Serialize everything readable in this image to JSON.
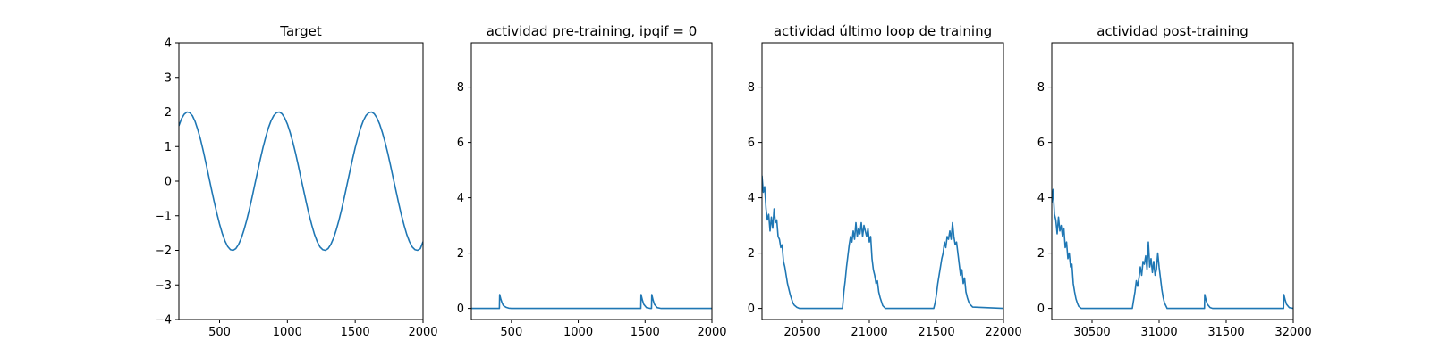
{
  "figure": {
    "line_color": "#1f77b4"
  },
  "chart_data": [
    {
      "type": "line",
      "title": "Target",
      "xlim": [
        200,
        2000
      ],
      "ylim": [
        -4,
        4
      ],
      "xticks": [
        500,
        1000,
        1500,
        2000
      ],
      "xtick_labels": [
        "500",
        "1000",
        "1500",
        "2000"
      ],
      "yticks": [
        -4,
        -3,
        -2,
        -1,
        0,
        1,
        2,
        3,
        4
      ],
      "ytick_labels": [
        "−4",
        "−3",
        "−2",
        "−1",
        "0",
        "1",
        "2",
        "3",
        "4"
      ],
      "series": [
        {
          "name": "target",
          "x": [
            200,
            220,
            240,
            260,
            280,
            300,
            320,
            340,
            360,
            380,
            400,
            420,
            440,
            460,
            480,
            500,
            520,
            540,
            560,
            580,
            600,
            620,
            640,
            660,
            680,
            700,
            720,
            740,
            760,
            780,
            800,
            820,
            840,
            860,
            880,
            900,
            920,
            940,
            960,
            980,
            1000,
            1020,
            1040,
            1060,
            1080,
            1100,
            1120,
            1140,
            1160,
            1180,
            1200,
            1220,
            1240,
            1260,
            1280,
            1300,
            1320,
            1340,
            1360,
            1380,
            1400,
            1420,
            1440,
            1460,
            1480,
            1500,
            1520,
            1540,
            1560,
            1580,
            1600,
            1620,
            1640,
            1660,
            1680,
            1700,
            1720,
            1740,
            1760,
            1780,
            1800,
            1820,
            1840,
            1860,
            1880,
            1900,
            1920,
            1940,
            1960,
            1980,
            2000
          ],
          "y": [
            1.6,
            1.81,
            1.94,
            2.0,
            1.98,
            1.89,
            1.72,
            1.48,
            1.2,
            0.87,
            0.51,
            0.14,
            -0.23,
            -0.59,
            -0.93,
            -1.24,
            -1.51,
            -1.73,
            -1.89,
            -1.98,
            -2.0,
            -1.95,
            -1.83,
            -1.65,
            -1.41,
            -1.13,
            -0.81,
            -0.46,
            -0.09,
            0.27,
            0.63,
            0.97,
            1.27,
            1.54,
            1.75,
            1.9,
            1.98,
            2.0,
            1.95,
            1.83,
            1.65,
            1.41,
            1.13,
            0.81,
            0.46,
            0.09,
            -0.27,
            -0.63,
            -0.97,
            -1.27,
            -1.54,
            -1.75,
            -1.9,
            -1.98,
            -2.0,
            -1.95,
            -1.83,
            -1.65,
            -1.41,
            -1.13,
            -0.81,
            -0.46,
            -0.09,
            0.27,
            0.63,
            0.97,
            1.27,
            1.54,
            1.75,
            1.9,
            1.98,
            2.0,
            1.95,
            1.83,
            1.65,
            1.41,
            1.13,
            0.81,
            0.46,
            0.09,
            -0.27,
            -0.63,
            -0.97,
            -1.27,
            -1.54,
            -1.75,
            -1.9,
            -1.98,
            -2.0,
            -1.95,
            -1.75
          ]
        }
      ]
    },
    {
      "type": "line",
      "title": "actividad pre-training, ipqif = 0",
      "xlim": [
        200,
        2000
      ],
      "ylim": [
        -0.4,
        9.6
      ],
      "xticks": [
        500,
        1000,
        1500,
        2000
      ],
      "xtick_labels": [
        "500",
        "1000",
        "1500",
        "2000"
      ],
      "yticks": [
        0,
        2,
        4,
        6,
        8
      ],
      "ytick_labels": [
        "0",
        "2",
        "4",
        "6",
        "8"
      ],
      "series": [
        {
          "name": "pre-training",
          "x": [
            200,
            400,
            410,
            412,
            420,
            430,
            440,
            460,
            480,
            500,
            1460,
            1468,
            1470,
            1480,
            1490,
            1510,
            1540,
            1548,
            1550,
            1560,
            1570,
            1590,
            1620,
            2000
          ],
          "y": [
            0,
            0,
            0,
            0.5,
            0.35,
            0.2,
            0.1,
            0.04,
            0.01,
            0,
            0,
            0,
            0.5,
            0.3,
            0.15,
            0.03,
            0,
            0,
            0.5,
            0.3,
            0.15,
            0.03,
            0,
            0
          ]
        }
      ]
    },
    {
      "type": "line",
      "title": "actividad último loop de training",
      "xlim": [
        20200,
        22000
      ],
      "ylim": [
        -0.4,
        9.6
      ],
      "xticks": [
        20500,
        21000,
        21500,
        22000
      ],
      "xtick_labels": [
        "20500",
        "21000",
        "21500",
        "22000"
      ],
      "yticks": [
        0,
        2,
        4,
        6,
        8
      ],
      "ytick_labels": [
        "0",
        "2",
        "4",
        "6",
        "8"
      ],
      "series": [
        {
          "name": "training",
          "x": [
            20200,
            20210,
            20220,
            20230,
            20240,
            20250,
            20260,
            20270,
            20280,
            20290,
            20300,
            20310,
            20320,
            20330,
            20340,
            20350,
            20360,
            20370,
            20380,
            20390,
            20400,
            20410,
            20420,
            20430,
            20440,
            20450,
            20460,
            20470,
            20480,
            20500,
            20800,
            20810,
            20820,
            20830,
            20840,
            20850,
            20860,
            20870,
            20880,
            20890,
            20900,
            20910,
            20920,
            20930,
            20940,
            20950,
            20960,
            20970,
            20980,
            20990,
            21000,
            21010,
            21020,
            21030,
            21040,
            21050,
            21060,
            21070,
            21080,
            21090,
            21100,
            21120,
            21480,
            21490,
            21500,
            21510,
            21520,
            21530,
            21540,
            21550,
            21560,
            21570,
            21580,
            21590,
            21600,
            21610,
            21620,
            21630,
            21640,
            21650,
            21660,
            21670,
            21680,
            21690,
            21700,
            21710,
            21720,
            21730,
            21740,
            21750,
            21770,
            22000
          ],
          "y": [
            4.8,
            4.2,
            4.4,
            3.6,
            3.2,
            3.4,
            2.8,
            3.3,
            2.9,
            3.6,
            3.1,
            3.2,
            2.6,
            2.5,
            2.2,
            2.3,
            1.7,
            1.5,
            1.2,
            0.9,
            0.7,
            0.5,
            0.35,
            0.2,
            0.12,
            0.08,
            0.04,
            0.02,
            0,
            0,
            0,
            0.6,
            1.0,
            1.5,
            1.9,
            2.3,
            2.6,
            2.4,
            2.8,
            2.5,
            3.1,
            2.6,
            2.9,
            2.7,
            3.1,
            2.6,
            3.0,
            2.8,
            2.6,
            2.9,
            2.4,
            2.6,
            1.8,
            1.4,
            1.2,
            0.9,
            1.0,
            0.6,
            0.4,
            0.25,
            0.1,
            0,
            0,
            0.2,
            0.5,
            0.9,
            1.2,
            1.5,
            1.8,
            2.0,
            2.4,
            2.2,
            2.6,
            2.5,
            2.8,
            2.5,
            3.1,
            2.6,
            2.3,
            2.4,
            2.0,
            1.6,
            1.2,
            1.4,
            0.9,
            1.1,
            0.6,
            0.4,
            0.25,
            0.15,
            0.05,
            0
          ]
        }
      ]
    },
    {
      "type": "line",
      "title": "actividad post-training",
      "xlim": [
        30200,
        32000
      ],
      "ylim": [
        -0.4,
        9.6
      ],
      "xticks": [
        30500,
        31000,
        31500,
        32000
      ],
      "xtick_labels": [
        "30500",
        "31000",
        "31500",
        "32000"
      ],
      "yticks": [
        0,
        2,
        4,
        6,
        8
      ],
      "ytick_labels": [
        "0",
        "2",
        "4",
        "6",
        "8"
      ],
      "series": [
        {
          "name": "post-training",
          "x": [
            30200,
            30210,
            30220,
            30230,
            30240,
            30250,
            30260,
            30270,
            30280,
            30290,
            30300,
            30310,
            30320,
            30330,
            30340,
            30350,
            30360,
            30370,
            30380,
            30390,
            30400,
            30420,
            30800,
            30810,
            30820,
            30830,
            30840,
            30850,
            30860,
            30870,
            30880,
            30890,
            30900,
            30910,
            30920,
            30930,
            30940,
            30950,
            30960,
            30970,
            30980,
            30990,
            31000,
            31010,
            31020,
            31030,
            31040,
            31060,
            31330,
            31338,
            31340,
            31350,
            31360,
            31380,
            31400,
            31920,
            31928,
            31930,
            31940,
            31950,
            31970,
            32000
          ],
          "y": [
            3.8,
            4.3,
            3.4,
            3.2,
            2.7,
            3.3,
            2.8,
            3.0,
            2.6,
            2.9,
            2.2,
            2.4,
            1.8,
            2.0,
            1.5,
            1.6,
            0.9,
            0.6,
            0.35,
            0.2,
            0.08,
            0,
            0,
            0.3,
            0.6,
            1.0,
            0.8,
            1.1,
            1.5,
            1.2,
            1.7,
            1.6,
            1.9,
            1.4,
            2.4,
            1.5,
            1.8,
            1.3,
            1.7,
            1.2,
            1.4,
            2.0,
            1.5,
            1.1,
            0.7,
            0.4,
            0.2,
            0,
            0,
            0,
            0.5,
            0.3,
            0.15,
            0.03,
            0,
            0,
            0,
            0.5,
            0.3,
            0.15,
            0.03,
            0
          ]
        }
      ]
    }
  ]
}
